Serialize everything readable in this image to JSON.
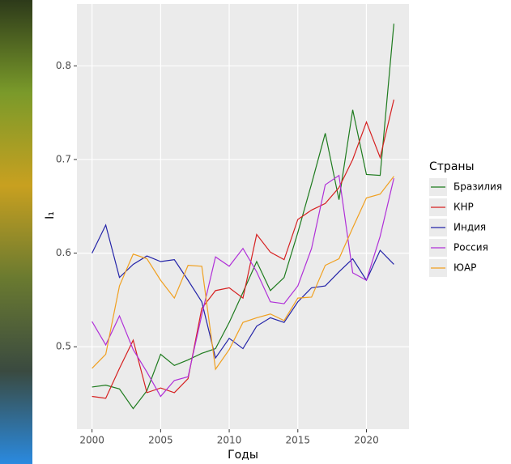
{
  "chart_data": {
    "type": "line",
    "x_label": "Годы",
    "y_label": "I₁",
    "legend_title": "Страны",
    "x": [
      2000,
      2001,
      2002,
      2003,
      2004,
      2005,
      2006,
      2007,
      2008,
      2009,
      2010,
      2011,
      2012,
      2013,
      2014,
      2015,
      2016,
      2017,
      2018,
      2019,
      2020,
      2021,
      2022
    ],
    "series": [
      {
        "name": "Бразилия",
        "color": "#1e7b1e",
        "values": [
          0.457,
          0.459,
          0.455,
          0.434,
          0.453,
          0.492,
          0.48,
          0.486,
          0.493,
          0.498,
          0.526,
          0.558,
          0.591,
          0.56,
          0.574,
          0.622,
          0.674,
          0.728,
          0.657,
          0.753,
          0.684,
          0.683,
          0.845
        ]
      },
      {
        "name": "КНР",
        "color": "#d62020",
        "values": [
          0.447,
          0.445,
          0.477,
          0.507,
          0.451,
          0.456,
          0.451,
          0.466,
          0.541,
          0.56,
          0.563,
          0.552,
          0.62,
          0.601,
          0.593,
          0.636,
          0.646,
          0.653,
          0.67,
          0.7,
          0.74,
          0.702,
          0.764
        ]
      },
      {
        "name": "Индия",
        "color": "#2323a8",
        "values": [
          0.6,
          0.63,
          0.574,
          0.588,
          0.597,
          0.591,
          0.593,
          0.571,
          0.548,
          0.488,
          0.509,
          0.498,
          0.522,
          0.531,
          0.526,
          0.548,
          0.563,
          0.565,
          0.58,
          0.594,
          0.571,
          0.603,
          0.588
        ]
      },
      {
        "name": "Россия",
        "color": "#b030d8",
        "values": [
          0.527,
          0.502,
          0.533,
          0.497,
          0.473,
          0.447,
          0.464,
          0.468,
          0.534,
          0.596,
          0.586,
          0.605,
          0.58,
          0.548,
          0.546,
          0.565,
          0.605,
          0.673,
          0.683,
          0.579,
          0.571,
          0.618,
          0.68
        ]
      },
      {
        "name": "ЮАР",
        "color": "#f0a020",
        "values": [
          0.477,
          0.492,
          0.565,
          0.599,
          0.594,
          0.571,
          0.552,
          0.587,
          0.586,
          0.476,
          0.497,
          0.526,
          0.531,
          0.535,
          0.528,
          0.552,
          0.553,
          0.587,
          0.594,
          0.627,
          0.659,
          0.663,
          0.682
        ]
      }
    ],
    "xlim": [
      1998.9,
      2023.1
    ],
    "xticks": [
      2000,
      2005,
      2010,
      2015,
      2020
    ],
    "ylim": [
      0.412,
      0.866
    ],
    "yticks": [
      0.5,
      0.6,
      0.7,
      0.8
    ],
    "grid": true
  }
}
